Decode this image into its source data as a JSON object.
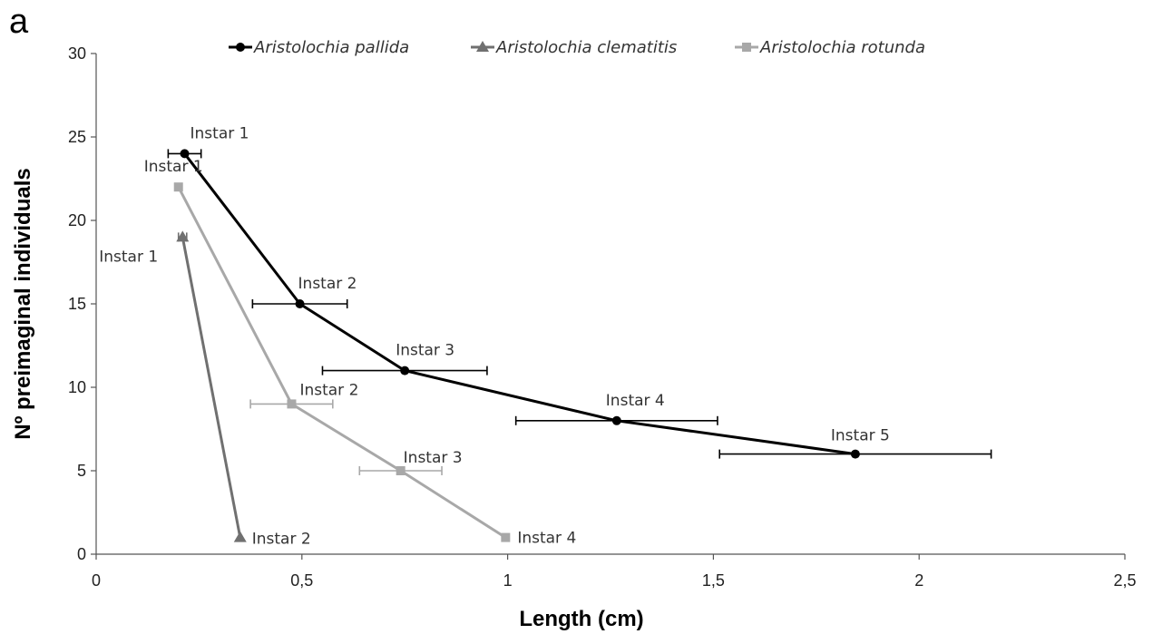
{
  "panel_letter": "a",
  "chart_data": {
    "type": "line",
    "xlabel": "Length (cm)",
    "ylabel": "Nº preimaginal individuals",
    "xlim": [
      0,
      2.5
    ],
    "ylim": [
      0,
      30
    ],
    "x_ticks": [
      "0",
      "0,5",
      "1",
      "1,5",
      "2",
      "2,5"
    ],
    "y_ticks": [
      "0",
      "5",
      "10",
      "15",
      "20",
      "25",
      "30"
    ],
    "grid": false,
    "legend_position": "top",
    "series": [
      {
        "name": "Aristolochia pallida",
        "color": "#000000",
        "marker": "circle",
        "x": [
          0.215,
          0.495,
          0.75,
          1.265,
          1.845
        ],
        "y": [
          24,
          15,
          11,
          8,
          6
        ],
        "xerr": [
          0.04,
          0.115,
          0.2,
          0.245,
          0.33
        ],
        "labels": [
          "Instar 1",
          "Instar 2",
          "Instar 3",
          "Instar 4",
          "Instar 5"
        ]
      },
      {
        "name": "Aristolochia clematitis",
        "color": "#707070",
        "marker": "triangle",
        "x": [
          0.21,
          0.35
        ],
        "y": [
          19,
          1
        ],
        "xerr": [
          0.01,
          0
        ],
        "labels": [
          "Instar 1",
          "Instar 2"
        ]
      },
      {
        "name": "Aristolochia rotunda",
        "color": "#a8a8a8",
        "marker": "square",
        "x": [
          0.2,
          0.475,
          0.74,
          0.995
        ],
        "y": [
          22,
          9,
          5,
          1
        ],
        "xerr": [
          0,
          0.1,
          0.1,
          0
        ],
        "labels": [
          "Instar 1",
          "Instar 2",
          "Instar 3",
          "Instar 4"
        ]
      }
    ]
  }
}
